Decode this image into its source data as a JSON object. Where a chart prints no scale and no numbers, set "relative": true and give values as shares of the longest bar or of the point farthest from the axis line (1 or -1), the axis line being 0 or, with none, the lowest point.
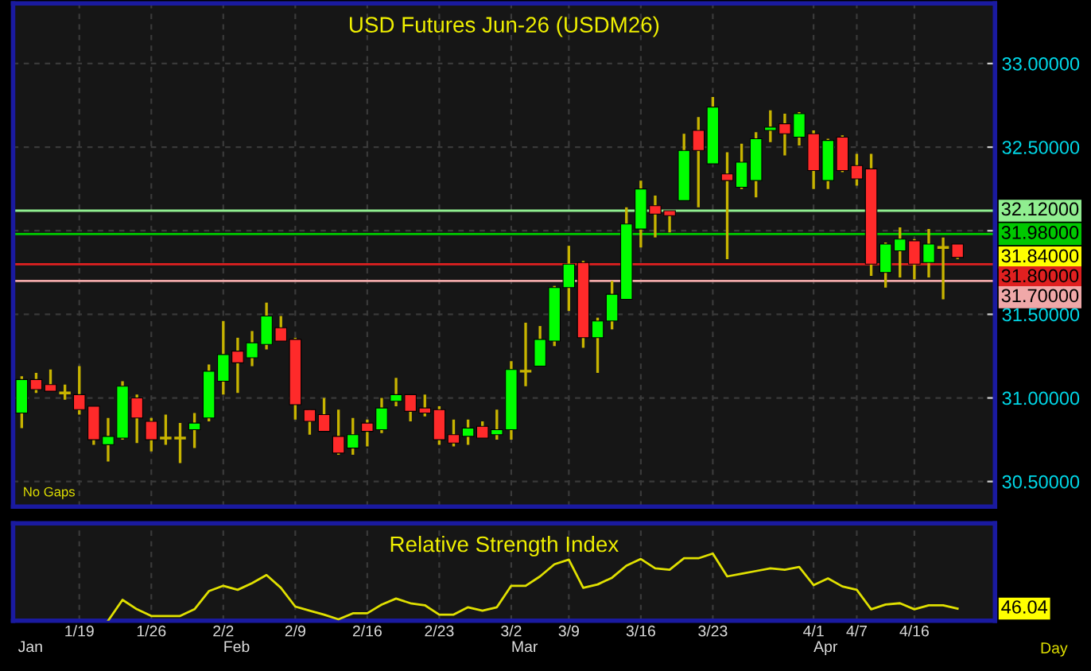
{
  "chart_data": [
    {
      "type": "candlestick",
      "title": "USD Futures Jun-26 (USDM26)",
      "categories": [
        null,
        null,
        null,
        null,
        null,
        null,
        null,
        null,
        null,
        null,
        null,
        null,
        null,
        null,
        null,
        null,
        null,
        null,
        null,
        null,
        null,
        null,
        null,
        null,
        null,
        null,
        null,
        null,
        null,
        null,
        null,
        null,
        null,
        null,
        null,
        null,
        null,
        null,
        null,
        null,
        null,
        null,
        null,
        null,
        null,
        null,
        null,
        null,
        null,
        null,
        null,
        null,
        null,
        null,
        null,
        null,
        null,
        null,
        null,
        null,
        null,
        null,
        null,
        null,
        null,
        null
      ],
      "ohlc": [
        [
          30.91,
          31.13,
          30.82,
          31.11
        ],
        [
          31.11,
          31.15,
          31.03,
          31.05
        ],
        [
          31.08,
          31.17,
          31.04,
          31.04
        ],
        [
          31.03,
          31.08,
          30.99,
          31.03
        ],
        [
          31.02,
          31.19,
          30.9,
          30.93
        ],
        [
          30.95,
          30.95,
          30.72,
          30.75
        ],
        [
          30.72,
          30.88,
          30.62,
          30.77
        ],
        [
          30.76,
          31.1,
          30.75,
          31.07
        ],
        [
          31.0,
          31.02,
          30.73,
          30.88
        ],
        [
          30.86,
          30.88,
          30.68,
          30.75
        ],
        [
          30.76,
          30.9,
          30.72,
          30.76
        ],
        [
          30.76,
          30.85,
          30.61,
          30.76
        ],
        [
          30.81,
          30.91,
          30.7,
          30.85
        ],
        [
          30.88,
          31.2,
          30.86,
          31.16
        ],
        [
          31.1,
          31.46,
          31.02,
          31.26
        ],
        [
          31.28,
          31.36,
          31.03,
          31.21
        ],
        [
          31.24,
          31.4,
          31.19,
          31.33
        ],
        [
          31.32,
          31.57,
          31.29,
          31.49
        ],
        [
          31.42,
          31.49,
          31.34,
          31.34
        ],
        [
          31.35,
          31.36,
          30.87,
          30.96
        ],
        [
          30.93,
          30.93,
          30.78,
          30.86
        ],
        [
          30.9,
          31.0,
          30.8,
          30.8
        ],
        [
          30.77,
          30.93,
          30.66,
          30.67
        ],
        [
          30.7,
          30.88,
          30.66,
          30.78
        ],
        [
          30.85,
          30.87,
          30.71,
          30.8
        ],
        [
          30.81,
          31.0,
          30.79,
          30.94
        ],
        [
          30.98,
          31.12,
          30.95,
          31.02
        ],
        [
          31.02,
          31.02,
          30.86,
          30.92
        ],
        [
          30.94,
          31.02,
          30.89,
          30.91
        ],
        [
          30.93,
          30.95,
          30.72,
          30.75
        ],
        [
          30.78,
          30.87,
          30.71,
          30.73
        ],
        [
          30.77,
          30.87,
          30.72,
          30.82
        ],
        [
          30.83,
          30.86,
          30.76,
          30.76
        ],
        [
          30.78,
          30.93,
          30.75,
          30.81
        ],
        [
          30.81,
          31.22,
          30.75,
          31.17
        ],
        [
          31.16,
          31.45,
          31.07,
          31.16
        ],
        [
          31.19,
          31.43,
          31.19,
          31.35
        ],
        [
          31.34,
          31.67,
          31.31,
          31.66
        ],
        [
          31.66,
          31.91,
          31.52,
          31.8
        ],
        [
          31.81,
          31.82,
          31.3,
          31.36
        ],
        [
          31.36,
          31.48,
          31.15,
          31.46
        ],
        [
          31.46,
          31.7,
          31.41,
          31.62
        ],
        [
          31.59,
          32.14,
          31.59,
          32.04
        ],
        [
          32.01,
          32.3,
          31.9,
          32.25
        ],
        [
          32.15,
          32.21,
          31.96,
          32.1
        ],
        [
          32.12,
          32.12,
          31.99,
          32.09
        ],
        [
          32.18,
          32.58,
          32.18,
          32.48
        ],
        [
          32.6,
          32.68,
          32.14,
          32.48
        ],
        [
          32.4,
          32.8,
          32.4,
          32.74
        ],
        [
          32.34,
          32.47,
          31.83,
          32.3
        ],
        [
          32.26,
          32.52,
          32.25,
          32.41
        ],
        [
          32.3,
          32.59,
          32.2,
          32.55
        ],
        [
          32.6,
          32.72,
          32.53,
          32.62
        ],
        [
          32.64,
          32.7,
          32.45,
          32.58
        ],
        [
          32.56,
          32.71,
          32.51,
          32.7
        ],
        [
          32.58,
          32.6,
          32.25,
          32.36
        ],
        [
          32.3,
          32.55,
          32.25,
          32.54
        ],
        [
          32.56,
          32.57,
          32.35,
          32.36
        ],
        [
          32.39,
          32.46,
          32.27,
          32.31
        ],
        [
          32.37,
          32.46,
          31.73,
          31.8
        ],
        [
          31.75,
          31.93,
          31.66,
          31.92
        ],
        [
          31.88,
          32.02,
          31.72,
          31.95
        ],
        [
          31.94,
          31.95,
          31.71,
          31.8
        ],
        [
          31.81,
          32.01,
          31.72,
          31.92
        ],
        [
          31.9,
          31.96,
          31.59,
          31.9
        ],
        [
          31.92,
          31.92,
          31.83,
          31.84
        ]
      ],
      "ylim": [
        30.35,
        33.36
      ],
      "yticks": [
        {
          "value": 30.5,
          "label": "30.50000"
        },
        {
          "value": 31,
          "label": "31.00000"
        },
        {
          "value": 31.5,
          "label": "31.50000"
        },
        {
          "value": 32,
          "label": null
        },
        {
          "value": 32.5,
          "label": "32.50000"
        },
        {
          "value": 33,
          "label": "33.00000"
        }
      ],
      "ref_lines": [
        {
          "axis": "y",
          "value": 32.12,
          "label": "32.12000",
          "color": "#90ee90"
        },
        {
          "axis": "y",
          "value": 31.98,
          "label": "31.98000",
          "color": "#00c800"
        },
        {
          "axis": "y",
          "value": 31.8,
          "label": "31.80000",
          "color": "#e02020"
        },
        {
          "axis": "y",
          "value": 31.7,
          "label": "31.70000",
          "color": "#f0a8a8"
        }
      ],
      "annotations": [
        "No Gaps",
        "31.84000"
      ],
      "grid": true,
      "tick_labels": "y"
    },
    {
      "type": "line",
      "title": "Relative Strength Index",
      "xlabel": "Day",
      "categories": [
        null,
        null,
        null,
        null,
        "1/19",
        null,
        null,
        null,
        null,
        "1/26",
        null,
        null,
        null,
        null,
        "2/2",
        null,
        null,
        null,
        null,
        "2/9",
        null,
        null,
        null,
        null,
        "2/16",
        null,
        null,
        null,
        null,
        "2/23",
        null,
        null,
        null,
        null,
        "3/2",
        null,
        null,
        null,
        "3/9",
        null,
        null,
        null,
        null,
        "3/16",
        null,
        null,
        null,
        null,
        "3/23",
        null,
        null,
        null,
        null,
        null,
        null,
        "4/1",
        null,
        null,
        "4/7",
        null,
        null,
        null,
        "4/16",
        null,
        null,
        null
      ],
      "relative": true,
      "series": [
        {
          "color": "#e0e000",
          "values": [
            null,
            null,
            null,
            null,
            null,
            null,
            0,
            0.31,
            0.17,
            0.07,
            0.07,
            0.07,
            0.17,
            0.44,
            0.52,
            0.46,
            0.56,
            0.68,
            0.49,
            0.21,
            0.15,
            0.09,
            0.02,
            0.11,
            0.11,
            0.24,
            0.33,
            0.26,
            0.23,
            0.09,
            0.09,
            0.2,
            0.15,
            0.2,
            0.52,
            0.52,
            0.66,
            0.84,
            0.91,
            0.49,
            0.54,
            0.64,
            0.82,
            0.92,
            0.78,
            0.76,
            0.93,
            0.93,
            1,
            0.66,
            0.7,
            0.74,
            0.78,
            0.76,
            0.8,
            0.53,
            0.63,
            0.51,
            0.46,
            0.17,
            0.24,
            0.26,
            0.17,
            0.23,
            0.23,
            0.18
          ]
        }
      ],
      "annotations": [
        "46.04",
        "Jan",
        "Feb",
        "Mar",
        "Apr"
      ],
      "grid": "x",
      "tick_labels": "x"
    }
  ]
}
